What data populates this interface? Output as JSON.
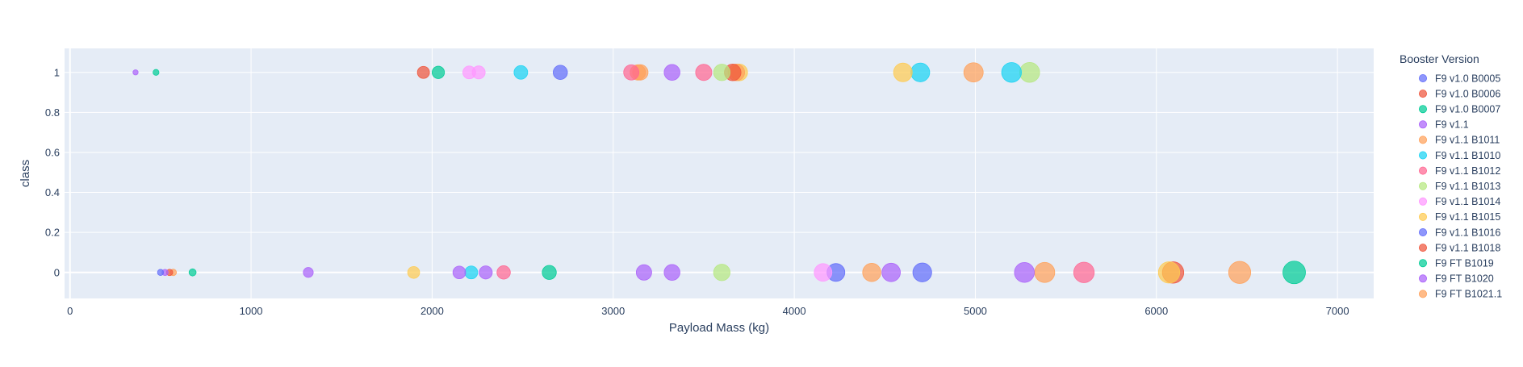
{
  "chart_data": {
    "type": "scatter",
    "xlabel": "Payload Mass (kg)",
    "ylabel": "class",
    "xlim": [
      -30,
      7200
    ],
    "ylim": [
      -0.13,
      1.12
    ],
    "x_ticks": [
      0,
      1000,
      2000,
      3000,
      4000,
      5000,
      6000,
      7000
    ],
    "x_tick_labels": [
      "0",
      "1000",
      "2000",
      "3000",
      "4000",
      "5000",
      "6000",
      "7000"
    ],
    "y_ticks": [
      0,
      0.2,
      0.4,
      0.6,
      0.8,
      1
    ],
    "y_tick_labels": [
      "0",
      "0.2",
      "0.4",
      "0.6",
      "0.8",
      "1"
    ],
    "grid": true,
    "legend_title": "Booster Version",
    "legend_position": "right",
    "marker_size_encodes": "Payload Mass (kg)",
    "series": [
      {
        "name": "F9 v1.0  B0005",
        "color": "#636efa",
        "points": [
          {
            "x": 500,
            "y": 0
          }
        ]
      },
      {
        "name": "F9 v1.0  B0006",
        "color": "#EF553B",
        "points": [
          {
            "x": 550,
            "y": 0
          }
        ]
      },
      {
        "name": "F9 v1.0  B0007",
        "color": "#00cc96",
        "points": [
          {
            "x": 677,
            "y": 0
          },
          {
            "x": 475,
            "y": 1
          }
        ]
      },
      {
        "name": "F9 v1.1",
        "color": "#ab63fa",
        "points": [
          {
            "x": 362,
            "y": 1
          },
          {
            "x": 525,
            "y": 0
          },
          {
            "x": 1316,
            "y": 0
          },
          {
            "x": 2150,
            "y": 0
          },
          {
            "x": 2296,
            "y": 0
          },
          {
            "x": 3170,
            "y": 0
          },
          {
            "x": 3325,
            "y": 0
          },
          {
            "x": 3325,
            "y": 1
          },
          {
            "x": 4535,
            "y": 0
          },
          {
            "x": 5271,
            "y": 0
          }
        ]
      },
      {
        "name": "F9 v1.1 B1011",
        "color": "#FFA15A",
        "points": [
          {
            "x": 570,
            "y": 0
          },
          {
            "x": 3150,
            "y": 1
          },
          {
            "x": 4428,
            "y": 0
          },
          {
            "x": 4990,
            "y": 1
          },
          {
            "x": 5383,
            "y": 0
          },
          {
            "x": 6460,
            "y": 0
          }
        ]
      },
      {
        "name": "F9 v1.1 B1010",
        "color": "#19d3f3",
        "points": [
          {
            "x": 2216,
            "y": 0
          },
          {
            "x": 2490,
            "y": 1
          },
          {
            "x": 4696,
            "y": 1
          },
          {
            "x": 5200,
            "y": 1
          }
        ]
      },
      {
        "name": "F9 v1.1 B1012",
        "color": "#FF6692",
        "points": [
          {
            "x": 2395,
            "y": 0
          },
          {
            "x": 3100,
            "y": 1
          },
          {
            "x": 3500,
            "y": 1
          },
          {
            "x": 5600,
            "y": 0
          }
        ]
      },
      {
        "name": "F9 v1.1 B1013",
        "color": "#B6E880",
        "points": [
          {
            "x": 3600,
            "y": 0
          },
          {
            "x": 3600,
            "y": 1
          },
          {
            "x": 5300,
            "y": 1
          }
        ]
      },
      {
        "name": "F9 v1.1 B1014",
        "color": "#FF97FF",
        "points": [
          {
            "x": 2205,
            "y": 1
          },
          {
            "x": 2257,
            "y": 1
          },
          {
            "x": 4159,
            "y": 0
          }
        ]
      },
      {
        "name": "F9 v1.1 B1015",
        "color": "#FECB52",
        "points": [
          {
            "x": 1898,
            "y": 0
          },
          {
            "x": 3696,
            "y": 1
          },
          {
            "x": 4600,
            "y": 1
          },
          {
            "x": 6070,
            "y": 0
          }
        ]
      },
      {
        "name": "F9 v1.1 B1016",
        "color": "#636efa",
        "points": [
          {
            "x": 2708,
            "y": 1
          },
          {
            "x": 4230,
            "y": 0
          },
          {
            "x": 4707,
            "y": 0
          }
        ]
      },
      {
        "name": "F9 v1.1 B1018",
        "color": "#EF553B",
        "points": [
          {
            "x": 1952,
            "y": 1
          },
          {
            "x": 3660,
            "y": 1
          },
          {
            "x": 6092,
            "y": 0
          }
        ]
      },
      {
        "name": "F9 FT B1019",
        "color": "#00cc96",
        "points": [
          {
            "x": 2034,
            "y": 1
          },
          {
            "x": 2647,
            "y": 0
          },
          {
            "x": 6761,
            "y": 0
          }
        ]
      },
      {
        "name": "F9 FT B1020",
        "color": "#ab63fa",
        "points": []
      },
      {
        "name": "F9 FT B1021.1",
        "color": "#FFA15A",
        "points": [
          {
            "x": 3136,
            "y": 1
          },
          {
            "x": 3680,
            "y": 1
          }
        ]
      }
    ]
  }
}
